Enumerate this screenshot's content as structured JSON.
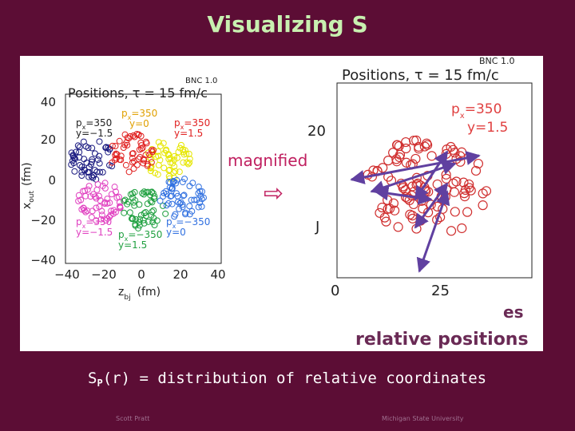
{
  "title": "Visualizing S",
  "left_plot": {
    "title": "Positions, τ = 15 fm/c",
    "stamp": "BNC 1.0",
    "y_label": {
      "sym": "x",
      "sub": "out",
      "unit": "(fm)"
    },
    "x_label": {
      "sym": "z",
      "sub": "bj",
      "unit": "(fm)"
    },
    "y_ticks": [
      "40",
      "20",
      "0",
      "−20",
      "−40"
    ],
    "x_ticks": [
      "−40",
      "−20",
      "0",
      "20",
      "40"
    ],
    "p_symbol": "p",
    "p_sub": "x",
    "groups": [
      {
        "eq": "=350",
        "rapidity": "y=0"
      },
      {
        "eq": "=350",
        "rapidity": "y=−1.5"
      },
      {
        "eq": "=350",
        "rapidity": "y=1.5"
      },
      {
        "eq": "=350",
        "rapidity": "y=−1.5"
      },
      {
        "eq": "=−350",
        "rapidity": "y=1.5"
      },
      {
        "eq": "=−350",
        "rapidity": "y=0"
      }
    ]
  },
  "right_plot": {
    "title": "Positions, τ = 15 fm/c",
    "stamp": "BNC 1.0",
    "p_symbol": "p",
    "p_sub": "x",
    "eq": "=350",
    "rapidity": "y=1.5",
    "y_ticks": [
      "20",
      "J"
    ],
    "x_ticks": [
      "0",
      "25"
    ]
  },
  "overlay": {
    "magnified": "magnified",
    "arrow": "⇨",
    "partial": "es",
    "caption": "relative positions"
  },
  "formula": {
    "s": "S",
    "sub": "P",
    "rest": "(r) = distribution of relative coordinates"
  },
  "footer": {
    "left": "Scott Pratt",
    "right": "Michigan State University"
  }
}
